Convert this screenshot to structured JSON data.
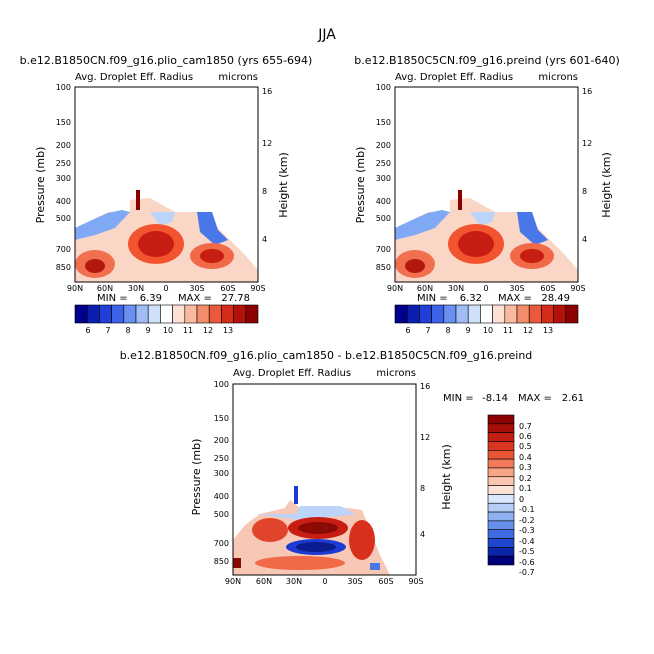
{
  "title": "JJA",
  "chart_data": [
    {
      "type": "heatmap",
      "title": "b.e12.B1850CN.f09_g16.plio_cam1850 (yrs 655-694)",
      "left_label": "Avg. Droplet Eff. Radius",
      "right_label": "microns",
      "ylabel": "Pressure (mb)",
      "ylabel_right": "Height (km)",
      "x_ticks": [
        "90N",
        "60N",
        "30N",
        "0",
        "30S",
        "60S",
        "90S"
      ],
      "y_ticks": [
        "100",
        "150",
        "200",
        "250",
        "300",
        "400",
        "500",
        "700",
        "850"
      ],
      "y_ticks_right": [
        "16",
        "12",
        "8",
        "4"
      ],
      "min_label": "MIN =",
      "min": "6.39",
      "max_label": "MAX =",
      "max": "27.78",
      "colorbar_labels": [
        "6",
        "7",
        "8",
        "9",
        "10",
        "11",
        "12",
        "13"
      ]
    },
    {
      "type": "heatmap",
      "title": "b.e12.B1850C5CN.f09_g16.preind (yrs 601-640)",
      "left_label": "Avg. Droplet Eff. Radius",
      "right_label": "microns",
      "ylabel": "Pressure (mb)",
      "ylabel_right": "Height (km)",
      "x_ticks": [
        "90N",
        "60N",
        "30N",
        "0",
        "30S",
        "60S",
        "90S"
      ],
      "y_ticks": [
        "100",
        "150",
        "200",
        "250",
        "300",
        "400",
        "500",
        "700",
        "850"
      ],
      "y_ticks_right": [
        "16",
        "12",
        "8",
        "4"
      ],
      "min_label": "MIN =",
      "min": "6.32",
      "max_label": "MAX =",
      "max": "28.49",
      "colorbar_labels": [
        "6",
        "7",
        "8",
        "9",
        "10",
        "11",
        "12",
        "13"
      ]
    },
    {
      "type": "heatmap",
      "title": "b.e12.B1850CN.f09_g16.plio_cam1850 - b.e12.B1850C5CN.f09_g16.preind",
      "left_label": "Avg. Droplet Eff. Radius",
      "right_label": "microns",
      "ylabel": "Pressure (mb)",
      "ylabel_right": "Height (km)",
      "x_ticks": [
        "90N",
        "60N",
        "30N",
        "0",
        "30S",
        "60S",
        "90S"
      ],
      "y_ticks": [
        "100",
        "150",
        "200",
        "250",
        "300",
        "400",
        "500",
        "700",
        "850"
      ],
      "y_ticks_right": [
        "16",
        "12",
        "8",
        "4"
      ],
      "min_label": "MIN =",
      "min": "-8.14",
      "max_label": "MAX =",
      "max": "2.61",
      "colorbar_labels": [
        "0.7",
        "0.6",
        "0.5",
        "0.4",
        "0.3",
        "0.2",
        "0.1",
        "0",
        "-0.1",
        "-0.2",
        "-0.3",
        "-0.4",
        "-0.5",
        "-0.6",
        "-0.7"
      ]
    }
  ]
}
